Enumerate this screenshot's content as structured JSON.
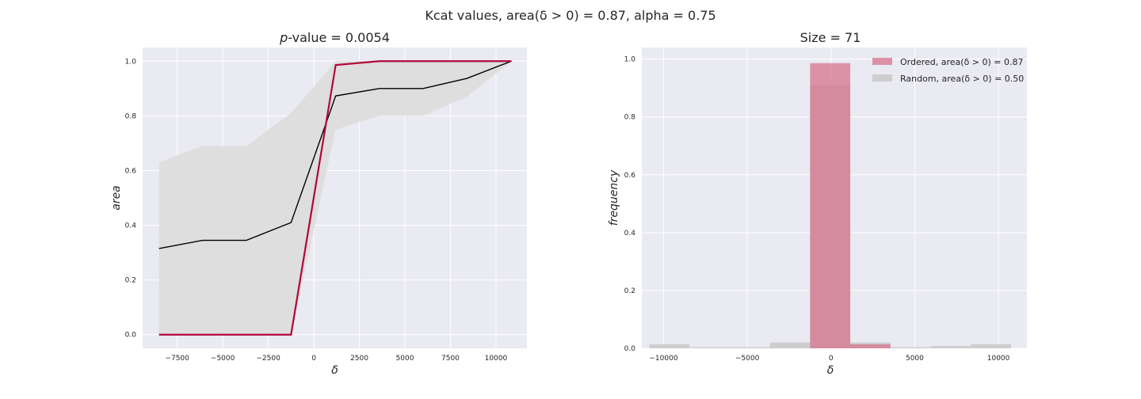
{
  "suptitle": "Kcat values, area(δ > 0) = 0.87, alpha = 0.75",
  "colors": {
    "background": "#EAEAF2",
    "grid": "#FFFFFF",
    "band": "#DEDEDE",
    "mean_line": "#000000",
    "ordered_line": "#B0083A",
    "ordered_bar": "#D6748E",
    "random_bar": "#C8C8C8"
  },
  "chart_data": [
    {
      "type": "line",
      "title_prefix": "p",
      "title_suffix": "-value = 0.0054",
      "xlabel": "δ",
      "ylabel": "area",
      "xlim": [
        -9400,
        11700
      ],
      "ylim": [
        -0.05,
        1.05
      ],
      "xticks": [
        -7500,
        -5000,
        -2500,
        0,
        2500,
        5000,
        7500,
        10000
      ],
      "xtick_labels": [
        "−7500",
        "−5000",
        "−2500",
        "0",
        "2500",
        "5000",
        "7500",
        "10000"
      ],
      "yticks": [
        0.0,
        0.2,
        0.4,
        0.6,
        0.8,
        1.0
      ],
      "ytick_labels": [
        "0.0",
        "0.2",
        "0.4",
        "0.6",
        "0.8",
        "1.0"
      ],
      "grid": true,
      "x": [
        -8500,
        -6100,
        -3700,
        -1250,
        1200,
        3600,
        6000,
        8400,
        10850
      ],
      "band": {
        "lower": [
          0.0,
          0.0,
          0.0,
          0.0,
          0.75,
          0.8,
          0.8,
          0.87,
          1.0
        ],
        "upper": [
          0.63,
          0.69,
          0.69,
          0.81,
          1.0,
          1.0,
          1.0,
          1.0,
          1.0
        ]
      },
      "series": [
        {
          "key": "mean",
          "values": [
            0.315,
            0.345,
            0.345,
            0.41,
            0.873,
            0.9,
            0.9,
            0.937,
            1.0
          ]
        },
        {
          "key": "ordered",
          "values": [
            0.0,
            0.0,
            0.0,
            0.0,
            0.986,
            1.0,
            1.0,
            1.0,
            1.0
          ]
        }
      ]
    },
    {
      "type": "bar",
      "title": "Size = 71",
      "xlabel": "δ",
      "ylabel": "frequency",
      "xlim": [
        -11300,
        11700
      ],
      "ylim": [
        0.0,
        1.04
      ],
      "xticks": [
        -10000,
        -5000,
        0,
        5000,
        10000
      ],
      "xtick_labels": [
        "−10000",
        "−5000",
        "0",
        "5000",
        "10000"
      ],
      "yticks": [
        0.0,
        0.2,
        0.4,
        0.6,
        0.8,
        1.0
      ],
      "ytick_labels": [
        "0.0",
        "0.2",
        "0.4",
        "0.6",
        "0.8",
        "1.0"
      ],
      "grid": true,
      "legend_position": "top-right",
      "bin_edges": [
        -10850,
        -8450,
        -6050,
        -3650,
        -1250,
        1150,
        3550,
        5950,
        8350,
        10750
      ],
      "series": [
        {
          "name": "Ordered, area(δ > 0) = 0.87",
          "values": [
            0.0,
            0.0,
            0.0,
            0.0,
            0.986,
            0.014,
            0.0,
            0.0,
            0.0
          ]
        },
        {
          "name": "Random, area(δ > 0) = 0.50",
          "values": [
            0.014,
            0.004,
            0.004,
            0.02,
            0.91,
            0.02,
            0.004,
            0.008,
            0.014
          ]
        }
      ]
    }
  ]
}
